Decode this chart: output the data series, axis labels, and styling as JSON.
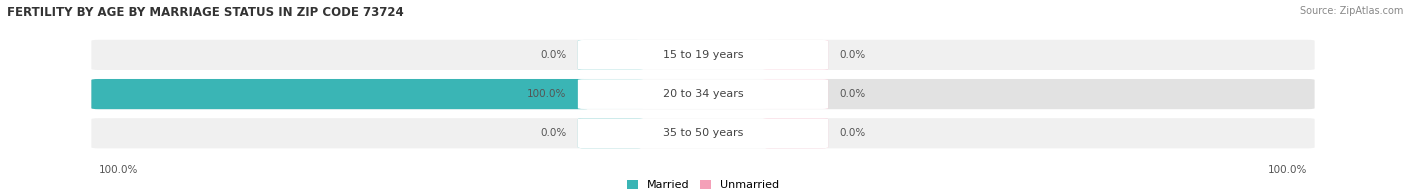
{
  "title": "FERTILITY BY AGE BY MARRIAGE STATUS IN ZIP CODE 73724",
  "source": "Source: ZipAtlas.com",
  "rows": [
    {
      "label": "15 to 19 years",
      "married": 0.0,
      "unmarried": 0.0
    },
    {
      "label": "20 to 34 years",
      "married": 100.0,
      "unmarried": 0.0
    },
    {
      "label": "35 to 50 years",
      "married": 0.0,
      "unmarried": 0.0
    }
  ],
  "married_color": "#3ab5b5",
  "unmarried_color": "#f4a0b8",
  "row_bg_even": "#f0f0f0",
  "row_bg_odd": "#e2e2e2",
  "title_fontsize": 8.5,
  "source_fontsize": 7,
  "label_fontsize": 8,
  "value_fontsize": 7.5,
  "legend_fontsize": 8,
  "axis_label_left": "100.0%",
  "axis_label_right": "100.0%",
  "max_val": 100.0,
  "figsize": [
    14.06,
    1.96
  ],
  "dpi": 100
}
